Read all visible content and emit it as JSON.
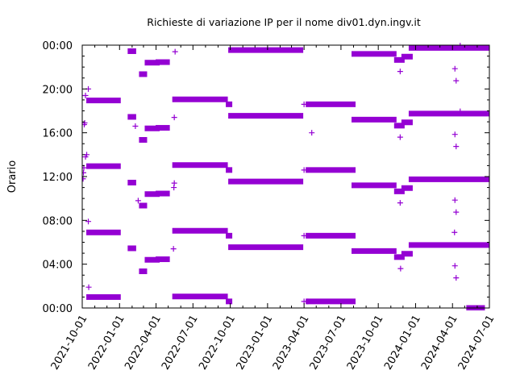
{
  "chart_data": {
    "type": "scatter",
    "title": "Richieste di variazione IP per il nome div01.dyn.ingv.it",
    "xlabel": "",
    "ylabel": "Orario",
    "x_type": "date",
    "xlim": [
      "2021-10-01",
      "2024-07-01"
    ],
    "ylim_hours": [
      0,
      24
    ],
    "x_ticks": [
      "2021-10-01",
      "2022-01-01",
      "2022-04-01",
      "2022-07-01",
      "2022-10-01",
      "2023-01-01",
      "2023-04-01",
      "2023-07-01",
      "2023-10-01",
      "2024-01-01",
      "2024-04-01",
      "2024-07-01"
    ],
    "y_ticks": [
      "00:00",
      "04:00",
      "08:00",
      "12:00",
      "16:00",
      "20:00",
      "00:00"
    ],
    "y_tick_values": [
      0,
      4,
      8,
      12,
      16,
      20,
      24
    ],
    "grid": false,
    "marker": "plus",
    "color": "#9400d3",
    "series": [
      {
        "bands": [
          {
            "start": "2021-10-16",
            "end": "2021-12-30",
            "hours": [
              1.0,
              6.9,
              12.95,
              18.95
            ]
          },
          {
            "start": "2022-01-26",
            "end": "2022-02-06",
            "hours": [
              5.45,
              11.45,
              17.45,
              23.45
            ]
          },
          {
            "start": "2022-02-23",
            "end": "2022-03-05",
            "hours": [
              3.35,
              9.35,
              15.35,
              21.35
            ]
          },
          {
            "start": "2022-03-09",
            "end": "2022-04-05",
            "hours": [
              4.4,
              10.4,
              16.4,
              22.4
            ]
          },
          {
            "start": "2022-04-05",
            "end": "2022-04-30",
            "hours": [
              4.45,
              10.45,
              16.45,
              22.45
            ]
          },
          {
            "start": "2022-05-16",
            "end": "2022-09-20",
            "hours": [
              1.05,
              7.05,
              13.05,
              19.05
            ]
          },
          {
            "start": "2022-09-25",
            "end": "2022-10-01",
            "hours": [
              0.6,
              6.6,
              12.6,
              18.6
            ]
          },
          {
            "start": "2022-10-01",
            "end": "2023-03-25",
            "hours": [
              5.55,
              11.55,
              17.55,
              23.55
            ]
          },
          {
            "start": "2023-04-10",
            "end": "2023-08-01",
            "hours": [
              0.6,
              6.6,
              12.6,
              18.6
            ]
          },
          {
            "start": "2023-08-01",
            "end": "2023-11-10",
            "hours": [
              5.2,
              11.2,
              17.2,
              23.2
            ]
          },
          {
            "start": "2023-11-14",
            "end": "2023-11-30",
            "hours": [
              4.65,
              10.65,
              16.65,
              22.65
            ]
          },
          {
            "start": "2023-12-02",
            "end": "2023-12-20",
            "hours": [
              4.95,
              10.95,
              16.95,
              22.95
            ]
          },
          {
            "start": "2023-12-20",
            "end": "2024-06-25",
            "hours": [
              5.75,
              11.75,
              17.75,
              23.75
            ]
          },
          {
            "start": "2024-05-10",
            "end": "2024-06-15",
            "hours": [
              0.0
            ]
          }
        ],
        "points": [
          {
            "x": "2021-10-03",
            "y": 11.8
          },
          {
            "x": "2021-10-04",
            "y": 12.35
          },
          {
            "x": "2021-10-05",
            "y": 12.8
          },
          {
            "x": "2021-10-06",
            "y": 16.75
          },
          {
            "x": "2021-10-07",
            "y": 16.9
          },
          {
            "x": "2021-10-09",
            "y": 19.4
          },
          {
            "x": "2021-10-09",
            "y": 13.8
          },
          {
            "x": "2021-10-12",
            "y": 14.0
          },
          {
            "x": "2021-10-16",
            "y": 20.0
          },
          {
            "x": "2021-10-16",
            "y": 7.9
          },
          {
            "x": "2021-10-17",
            "y": 1.9
          },
          {
            "x": "2022-02-09",
            "y": 16.6
          },
          {
            "x": "2022-02-16",
            "y": 9.8
          },
          {
            "x": "2022-05-16",
            "y": 17.4
          },
          {
            "x": "2022-05-16",
            "y": 11.4
          },
          {
            "x": "2022-05-15",
            "y": 11.0
          },
          {
            "x": "2022-05-18",
            "y": 23.4
          },
          {
            "x": "2022-05-14",
            "y": 5.4
          },
          {
            "x": "2023-04-01",
            "y": 18.6
          },
          {
            "x": "2023-04-01",
            "y": 12.6
          },
          {
            "x": "2023-04-01",
            "y": 6.6
          },
          {
            "x": "2023-04-01",
            "y": 0.6
          },
          {
            "x": "2023-04-10",
            "y": 0.6
          },
          {
            "x": "2023-04-20",
            "y": 16.0
          },
          {
            "x": "2023-11-24",
            "y": 9.6
          },
          {
            "x": "2023-11-24",
            "y": 15.6
          },
          {
            "x": "2023-11-24",
            "y": 21.6
          },
          {
            "x": "2023-11-25",
            "y": 3.6
          },
          {
            "x": "2024-04-10",
            "y": 2.75
          },
          {
            "x": "2024-04-10",
            "y": 8.75
          },
          {
            "x": "2024-04-10",
            "y": 14.75
          },
          {
            "x": "2024-04-10",
            "y": 20.75
          },
          {
            "x": "2024-04-07",
            "y": 3.85
          },
          {
            "x": "2024-04-07",
            "y": 9.85
          },
          {
            "x": "2024-04-07",
            "y": 15.85
          },
          {
            "x": "2024-04-07",
            "y": 21.85
          },
          {
            "x": "2024-04-06",
            "y": 6.9
          },
          {
            "x": "2024-04-20",
            "y": 23.95
          },
          {
            "x": "2024-04-20",
            "y": 17.95
          }
        ]
      }
    ]
  }
}
